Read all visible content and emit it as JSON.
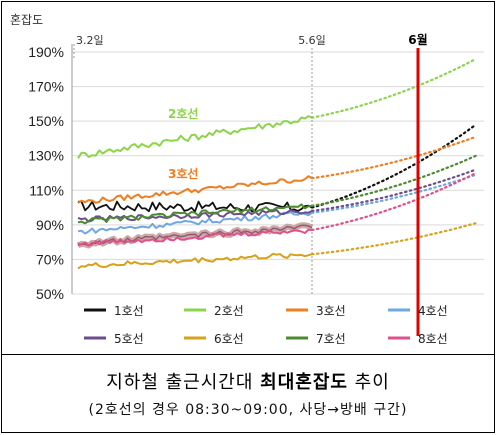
{
  "chart_data": {
    "type": "line",
    "y_axis_title": "혼잡도",
    "yticks": [
      "190%",
      "170%",
      "150%",
      "130%",
      "110%",
      "90%",
      "70%",
      "50%"
    ],
    "ylim": [
      50,
      190
    ],
    "start_label": "3.2일",
    "mid_label": "5.6일",
    "month_label": "6월",
    "series": [
      {
        "name": "1호선",
        "color": "#111111",
        "anno": "",
        "observed_start": 101,
        "observed_end": 100,
        "projection_end": 148
      },
      {
        "name": "2호선",
        "color": "#8cd44a",
        "anno": "2호선",
        "observed_start": 130,
        "observed_end": 152,
        "projection_end": 186
      },
      {
        "name": "3호선",
        "color": "#f07d1e",
        "anno": "3호선",
        "observed_start": 103,
        "observed_end": 117,
        "projection_end": 141
      },
      {
        "name": "4호선",
        "color": "#6fa8e0",
        "anno": "",
        "observed_start": 86,
        "observed_end": 97,
        "projection_end": 119
      },
      {
        "name": "5호선",
        "color": "#6b4e8f",
        "anno": "",
        "observed_start": 93,
        "observed_end": 98,
        "projection_end": 122
      },
      {
        "name": "6호선",
        "color": "#d6a21a",
        "anno": "",
        "observed_start": 66,
        "observed_end": 73,
        "projection_end": 91
      },
      {
        "name": "7호선",
        "color": "#4c8a30",
        "anno": "",
        "observed_start": 92,
        "observed_end": 101,
        "projection_end": 130
      },
      {
        "name": "8호선",
        "color": "#e0508a",
        "anno": "",
        "observed_start": 79,
        "observed_end": 87,
        "projection_end": 120
      }
    ],
    "band_series": {
      "name": "5호선",
      "start": 79,
      "end": 89
    }
  },
  "caption": {
    "title_pre": "지하철 출근시간대 ",
    "title_bold": "최대혼잡도",
    "title_post": " 추이",
    "subtitle": "(2호선의 경우 08:30~09:00, 사당→방배 구간)"
  }
}
